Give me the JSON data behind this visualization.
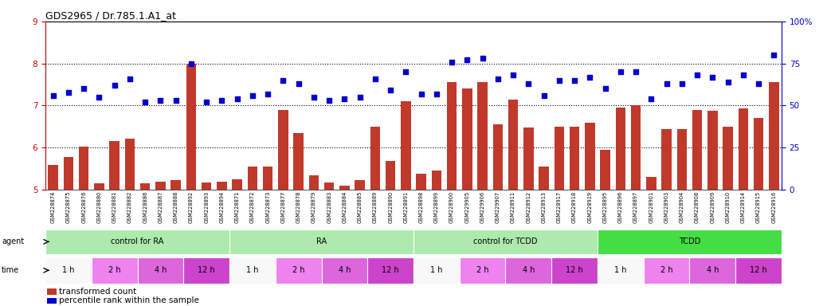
{
  "title": "GDS2965 / Dr.785.1.A1_at",
  "samples": [
    "GSM228874",
    "GSM228875",
    "GSM228876",
    "GSM228880",
    "GSM228881",
    "GSM228882",
    "GSM228886",
    "GSM228887",
    "GSM228888",
    "GSM228892",
    "GSM228893",
    "GSM228894",
    "GSM228871",
    "GSM228872",
    "GSM228873",
    "GSM228877",
    "GSM228878",
    "GSM228879",
    "GSM228883",
    "GSM228884",
    "GSM228885",
    "GSM228889",
    "GSM228890",
    "GSM228891",
    "GSM228898",
    "GSM228899",
    "GSM228900",
    "GSM229905",
    "GSM229906",
    "GSM229907",
    "GSM228911",
    "GSM228912",
    "GSM228913",
    "GSM228917",
    "GSM228918",
    "GSM228919",
    "GSM228895",
    "GSM228896",
    "GSM228897",
    "GSM228901",
    "GSM228903",
    "GSM228904",
    "GSM228908",
    "GSM228909",
    "GSM228910",
    "GSM228914",
    "GSM228915",
    "GSM228916"
  ],
  "bar_values": [
    5.58,
    5.78,
    6.02,
    5.15,
    6.15,
    6.22,
    5.15,
    5.2,
    5.22,
    8.0,
    5.18,
    5.2,
    5.25,
    5.55,
    5.55,
    6.9,
    6.35,
    5.35,
    5.18,
    5.1,
    5.22,
    6.5,
    5.68,
    7.1,
    5.38,
    5.45,
    7.55,
    7.4,
    7.55,
    6.55,
    7.15,
    6.48,
    5.55,
    6.5,
    6.5,
    6.6,
    5.95,
    6.95,
    7.0,
    5.3,
    6.45,
    6.45,
    6.9,
    6.88,
    6.5,
    6.93,
    6.7,
    7.55
  ],
  "dot_values": [
    56,
    58,
    60,
    55,
    62,
    66,
    52,
    53,
    53,
    75,
    52,
    53,
    54,
    56,
    57,
    65,
    63,
    55,
    53,
    54,
    55,
    66,
    59,
    70,
    57,
    57,
    76,
    77,
    78,
    66,
    68,
    63,
    56,
    65,
    65,
    67,
    60,
    70,
    70,
    54,
    63,
    63,
    68,
    67,
    64,
    68,
    63,
    80
  ],
  "bar_color": "#c0392b",
  "dot_color": "#0000cc",
  "ylim_left": [
    5.0,
    9.0
  ],
  "ylim_right": [
    0,
    100
  ],
  "yticks_left": [
    5,
    6,
    7,
    8,
    9
  ],
  "yticks_right": [
    0,
    25,
    50,
    75,
    100
  ],
  "agent_groups": [
    {
      "label": "control for RA",
      "start": 0,
      "end": 11,
      "color": "#aeeaae"
    },
    {
      "label": "RA",
      "start": 12,
      "end": 23,
      "color": "#aeeaae"
    },
    {
      "label": "control for TCDD",
      "start": 24,
      "end": 35,
      "color": "#aeeaae"
    },
    {
      "label": "TCDD",
      "start": 36,
      "end": 47,
      "color": "#44dd44"
    }
  ],
  "time_groups": [
    {
      "label": "1 h",
      "start": 0,
      "end": 2,
      "color": "#f8f8f8"
    },
    {
      "label": "2 h",
      "start": 3,
      "end": 5,
      "color": "#ee82ee"
    },
    {
      "label": "4 h",
      "start": 6,
      "end": 8,
      "color": "#dd66dd"
    },
    {
      "label": "12 h",
      "start": 9,
      "end": 11,
      "color": "#cc44cc"
    },
    {
      "label": "1 h",
      "start": 12,
      "end": 14,
      "color": "#f8f8f8"
    },
    {
      "label": "2 h",
      "start": 15,
      "end": 17,
      "color": "#ee82ee"
    },
    {
      "label": "4 h",
      "start": 18,
      "end": 20,
      "color": "#dd66dd"
    },
    {
      "label": "12 h",
      "start": 21,
      "end": 23,
      "color": "#cc44cc"
    },
    {
      "label": "1 h",
      "start": 24,
      "end": 26,
      "color": "#f8f8f8"
    },
    {
      "label": "2 h",
      "start": 27,
      "end": 29,
      "color": "#ee82ee"
    },
    {
      "label": "4 h",
      "start": 30,
      "end": 32,
      "color": "#dd66dd"
    },
    {
      "label": "12 h",
      "start": 33,
      "end": 35,
      "color": "#cc44cc"
    },
    {
      "label": "1 h",
      "start": 36,
      "end": 38,
      "color": "#f8f8f8"
    },
    {
      "label": "2 h",
      "start": 39,
      "end": 41,
      "color": "#ee82ee"
    },
    {
      "label": "4 h",
      "start": 42,
      "end": 44,
      "color": "#dd66dd"
    },
    {
      "label": "12 h",
      "start": 45,
      "end": 47,
      "color": "#cc44cc"
    }
  ],
  "legend_bar_label": "transformed count",
  "legend_dot_label": "percentile rank within the sample",
  "bg_color": "#ffffff",
  "left_axis_color": "#cc0000",
  "right_axis_color": "#0000cc"
}
